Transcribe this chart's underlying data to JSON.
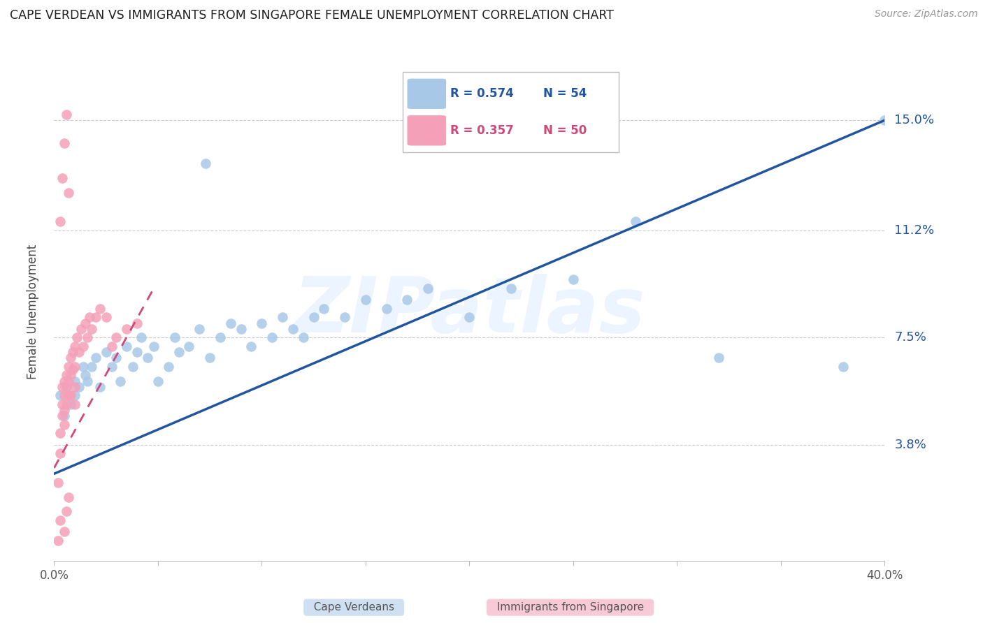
{
  "title": "CAPE VERDEAN VS IMMIGRANTS FROM SINGAPORE FEMALE UNEMPLOYMENT CORRELATION CHART",
  "source": "Source: ZipAtlas.com",
  "ylabel": "Female Unemployment",
  "xlim": [
    0.0,
    0.4
  ],
  "ylim": [
    -0.002,
    0.17
  ],
  "ytick_vals": [
    0.038,
    0.075,
    0.112,
    0.15
  ],
  "ytick_labels": [
    "3.8%",
    "7.5%",
    "11.2%",
    "15.0%"
  ],
  "xtick_vals": [
    0.0,
    0.05,
    0.1,
    0.15,
    0.2,
    0.25,
    0.3,
    0.35,
    0.4
  ],
  "xtick_labels": [
    "0.0%",
    "",
    "",
    "",
    "",
    "",
    "",
    "",
    "40.0%"
  ],
  "blue_color": "#a8c8e8",
  "blue_line_color": "#2255a0",
  "pink_color": "#f4a0b8",
  "pink_line_color": "#d04878",
  "watermark_text": "ZIPatlas",
  "watermark_color": "#ddeeff",
  "legend_label_blue": "Cape Verdeans",
  "legend_label_pink": "Immigrants from Singapore",
  "blue_line_x0": 0.0,
  "blue_line_y0": 0.028,
  "blue_line_x1": 0.4,
  "blue_line_y1": 0.15,
  "pink_line_x0": 0.0,
  "pink_line_y0": 0.03,
  "pink_line_x1": 0.048,
  "pink_line_y1": 0.092,
  "blue_x": [
    0.003,
    0.005,
    0.006,
    0.008,
    0.01,
    0.01,
    0.012,
    0.014,
    0.015,
    0.016,
    0.018,
    0.02,
    0.022,
    0.025,
    0.028,
    0.03,
    0.032,
    0.035,
    0.038,
    0.04,
    0.042,
    0.045,
    0.048,
    0.05,
    0.055,
    0.058,
    0.06,
    0.065,
    0.07,
    0.075,
    0.08,
    0.085,
    0.09,
    0.095,
    0.1,
    0.105,
    0.11,
    0.115,
    0.12,
    0.125,
    0.13,
    0.14,
    0.15,
    0.16,
    0.17,
    0.18,
    0.2,
    0.22,
    0.25,
    0.28,
    0.32,
    0.38,
    0.073,
    0.4
  ],
  "blue_y": [
    0.055,
    0.048,
    0.058,
    0.052,
    0.06,
    0.055,
    0.058,
    0.065,
    0.062,
    0.06,
    0.065,
    0.068,
    0.058,
    0.07,
    0.065,
    0.068,
    0.06,
    0.072,
    0.065,
    0.07,
    0.075,
    0.068,
    0.072,
    0.06,
    0.065,
    0.075,
    0.07,
    0.072,
    0.078,
    0.068,
    0.075,
    0.08,
    0.078,
    0.072,
    0.08,
    0.075,
    0.082,
    0.078,
    0.075,
    0.082,
    0.085,
    0.082,
    0.088,
    0.085,
    0.088,
    0.092,
    0.082,
    0.092,
    0.095,
    0.115,
    0.068,
    0.065,
    0.135,
    0.15
  ],
  "pink_x": [
    0.002,
    0.003,
    0.003,
    0.004,
    0.004,
    0.004,
    0.005,
    0.005,
    0.005,
    0.005,
    0.006,
    0.006,
    0.006,
    0.007,
    0.007,
    0.007,
    0.008,
    0.008,
    0.008,
    0.009,
    0.009,
    0.01,
    0.01,
    0.01,
    0.01,
    0.011,
    0.012,
    0.013,
    0.014,
    0.015,
    0.016,
    0.017,
    0.018,
    0.02,
    0.022,
    0.025,
    0.028,
    0.03,
    0.035,
    0.04,
    0.003,
    0.004,
    0.005,
    0.006,
    0.007,
    0.005,
    0.006,
    0.007,
    0.002,
    0.003
  ],
  "pink_y": [
    0.025,
    0.035,
    0.042,
    0.048,
    0.052,
    0.058,
    0.06,
    0.055,
    0.05,
    0.045,
    0.062,
    0.058,
    0.052,
    0.065,
    0.06,
    0.055,
    0.068,
    0.062,
    0.055,
    0.07,
    0.064,
    0.072,
    0.065,
    0.058,
    0.052,
    0.075,
    0.07,
    0.078,
    0.072,
    0.08,
    0.075,
    0.082,
    0.078,
    0.082,
    0.085,
    0.082,
    0.072,
    0.075,
    0.078,
    0.08,
    0.115,
    0.13,
    0.142,
    0.152,
    0.125,
    0.008,
    0.015,
    0.02,
    0.005,
    0.012
  ]
}
